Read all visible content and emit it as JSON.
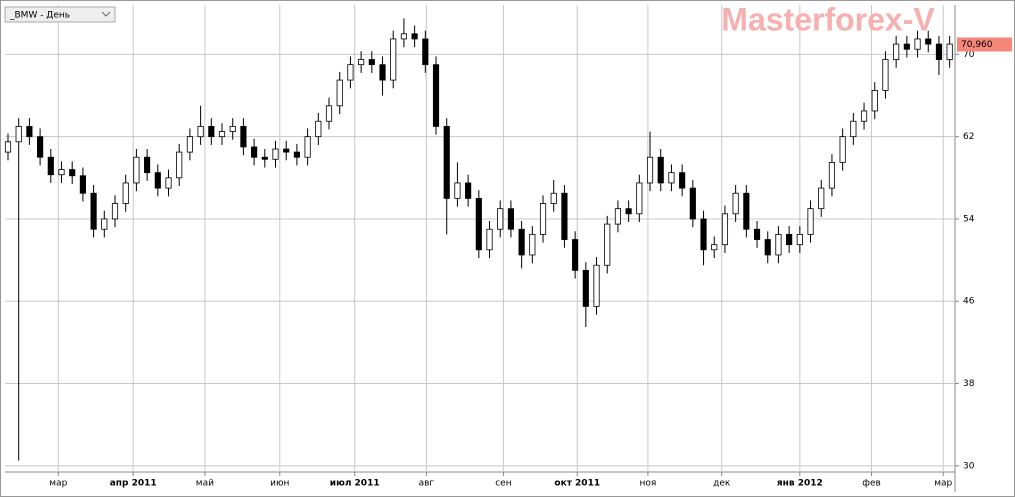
{
  "chart_data": {
    "type": "candlestick",
    "title": "_BMW - День",
    "watermark": "Masterforex-V",
    "xlim": [
      -0.28,
      88.5
    ],
    "xticks": [
      {
        "value": 4.7,
        "label": "мар"
      },
      {
        "value": 11.7,
        "label": "апр 2011"
      },
      {
        "value": 18.4,
        "label": "май"
      },
      {
        "value": 25.4,
        "label": "июн"
      },
      {
        "value": 32.4,
        "label": "июл 2011"
      },
      {
        "value": 39.1,
        "label": "авг"
      },
      {
        "value": 46.3,
        "label": "сен"
      },
      {
        "value": 53.2,
        "label": "окт 2011"
      },
      {
        "value": 59.8,
        "label": "ноя"
      },
      {
        "value": 66.7,
        "label": "дек"
      },
      {
        "value": 74,
        "label": "янв 2012"
      },
      {
        "value": 80.7,
        "label": "фев"
      },
      {
        "value": 87.4,
        "label": "мар"
      }
    ],
    "ylim": [
      29.4,
      74.8
    ],
    "yticks": [
      30,
      38,
      46,
      54,
      62,
      70
    ],
    "grid": true,
    "up_color": "#ffffff",
    "down_color": "#000000",
    "edge_color": "#000000",
    "last_price": {
      "value": 70.96,
      "label": "70,960",
      "color": "#f4867a"
    },
    "open": [
      60.5,
      61.5,
      63,
      62,
      60,
      58.3,
      58.8,
      58.2,
      56.5,
      53,
      54,
      55.5,
      57.5,
      60,
      58.5,
      57,
      58,
      60.5,
      62,
      63,
      62,
      62.5,
      63,
      61,
      60,
      59.8,
      60.8,
      60.5,
      60,
      62,
      63.5,
      65,
      67.5,
      69,
      69.5,
      69,
      67.5,
      71.5,
      72,
      71.5,
      69,
      63,
      56,
      57.5,
      56,
      51,
      53,
      55,
      53,
      50.5,
      52.5,
      55.5,
      56.5,
      52,
      49,
      45.5,
      49.5,
      53.5,
      55,
      54.5,
      57.5,
      60,
      57.5,
      58.5,
      57,
      54,
      51,
      51.5,
      54.5,
      56.5,
      53,
      52,
      50.5,
      52.5,
      51.5,
      52.5,
      55,
      57,
      59.5,
      62,
      63.5,
      64.5,
      66.5,
      69.5,
      71,
      70.5,
      71.5,
      71,
      69.5
    ],
    "high": [
      62.3,
      63.8,
      63.8,
      62.8,
      60.8,
      59.6,
      59.6,
      59,
      57.3,
      54.8,
      56.3,
      58.3,
      60.8,
      60.8,
      59.3,
      58.8,
      61.3,
      62.8,
      65,
      63.8,
      63.3,
      63.8,
      63.8,
      61.8,
      60.8,
      61.6,
      61.6,
      61.3,
      62.8,
      64.3,
      65.8,
      68.3,
      69.8,
      70.3,
      70.3,
      69.8,
      72.3,
      73.5,
      72.8,
      72.3,
      69.8,
      63.8,
      59.5,
      58.3,
      56.8,
      53.8,
      55.8,
      55.8,
      53.8,
      53.3,
      56.3,
      57.8,
      57.3,
      52.8,
      49.8,
      50.3,
      54.3,
      55.8,
      55.8,
      58.3,
      62.5,
      60.8,
      59.3,
      59.3,
      57.8,
      54.8,
      52.3,
      55.3,
      57.3,
      57.3,
      53.8,
      52.8,
      53.3,
      53.3,
      53.3,
      55.8,
      57.8,
      60.3,
      62.8,
      64.3,
      65.3,
      67.3,
      70.3,
      71.8,
      71.8,
      72.3,
      72.3,
      71.8,
      71.8
    ],
    "low": [
      59.7,
      30.5,
      61.2,
      59.2,
      57.5,
      57.5,
      57.4,
      55.7,
      52.2,
      52.2,
      53.2,
      54.7,
      56.7,
      57.7,
      56.2,
      56.2,
      57.2,
      59.7,
      61.2,
      61.2,
      61.2,
      61.7,
      60.2,
      59.2,
      59,
      59,
      59.7,
      59.2,
      59.2,
      61.2,
      62.7,
      64.2,
      66.7,
      68.2,
      68.2,
      66,
      66.7,
      70.7,
      70.7,
      68.2,
      62.2,
      52.5,
      55.2,
      55.2,
      50.2,
      50.2,
      52.2,
      52.2,
      49.2,
      49.7,
      51.7,
      54.7,
      51.2,
      48.2,
      43.5,
      44.7,
      48.7,
      52.7,
      53.7,
      53.7,
      56.7,
      56.7,
      56.7,
      56.2,
      53.2,
      49.5,
      50.2,
      50.7,
      53.7,
      52.2,
      51.2,
      49.7,
      49.7,
      50.7,
      50.7,
      51.7,
      54.2,
      56.2,
      58.7,
      61.2,
      62.7,
      63.7,
      65.7,
      68.7,
      69.7,
      69.7,
      70.2,
      68,
      68.7
    ],
    "close": [
      61.5,
      63,
      62,
      60,
      58.3,
      58.8,
      58.2,
      56.5,
      53,
      54,
      55.5,
      57.5,
      60,
      58.5,
      57,
      58,
      60.5,
      62,
      63,
      62,
      62.5,
      63,
      61,
      60,
      59.8,
      60.8,
      60.5,
      60,
      62,
      63.5,
      65,
      67.5,
      69,
      69.5,
      69,
      67.5,
      71.5,
      72,
      71.5,
      69,
      63,
      56,
      57.5,
      56,
      51,
      53,
      55,
      53,
      50.5,
      52.5,
      55.5,
      56.5,
      52,
      49,
      45.5,
      49.5,
      53.5,
      55,
      54.5,
      57.5,
      60,
      57.5,
      58.5,
      57,
      54,
      51,
      51.5,
      54.5,
      56.5,
      53,
      52,
      50.5,
      52.5,
      51.5,
      52.5,
      55,
      57,
      59.5,
      62,
      63.5,
      64.5,
      66.5,
      69.5,
      71,
      70.5,
      71.5,
      71,
      69.5,
      71
    ]
  }
}
